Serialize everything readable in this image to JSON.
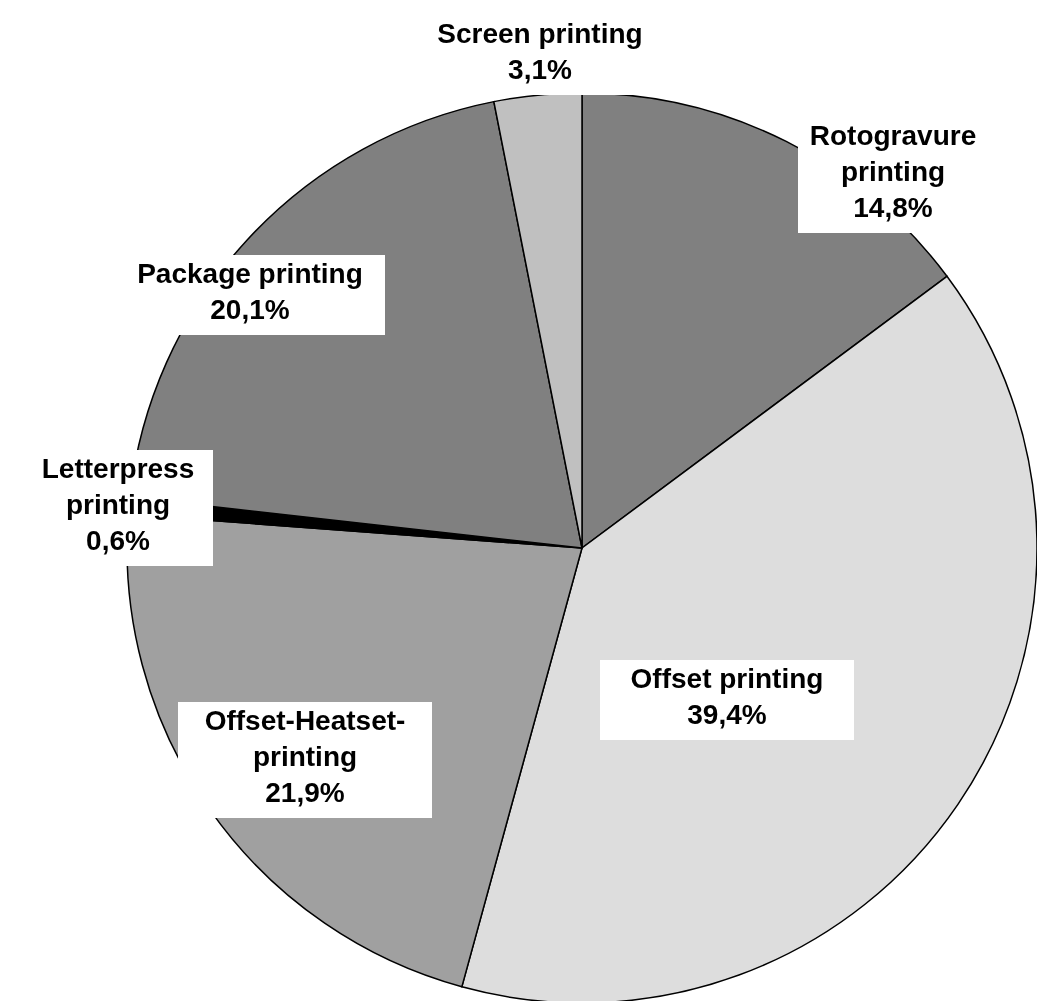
{
  "chart_data": {
    "type": "pie",
    "categories": [
      "Rotogravure printing",
      "Offset printing",
      "Offset-Heatset-printing",
      "Letterpress printing",
      "Package printing",
      "Screen printing"
    ],
    "values": [
      14.8,
      39.4,
      21.9,
      0.6,
      20.1,
      3.1
    ],
    "value_labels": [
      "14,8%",
      "39,4%",
      "21,9%",
      "0,6%",
      "20,1%",
      "3,1%"
    ],
    "colors": [
      "#808080",
      "#dddddd",
      "#a0a0a0",
      "#000000",
      "#808080",
      "#c0c0c0"
    ]
  }
}
